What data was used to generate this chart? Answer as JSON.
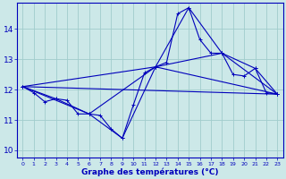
{
  "title": "Graphe des températures (°C)",
  "bg_color": "#cce8e8",
  "grid_color": "#a0cccc",
  "line_color": "#0000bb",
  "xlim": [
    -0.5,
    23.5
  ],
  "ylim": [
    9.75,
    14.85
  ],
  "xticks": [
    0,
    1,
    2,
    3,
    4,
    5,
    6,
    7,
    8,
    9,
    10,
    11,
    12,
    13,
    14,
    15,
    16,
    17,
    18,
    19,
    20,
    21,
    22,
    23
  ],
  "yticks": [
    10,
    11,
    12,
    13,
    14
  ],
  "series_main": {
    "x": [
      0,
      1,
      2,
      3,
      4,
      5,
      6,
      7,
      8,
      9,
      10,
      11,
      12,
      13,
      14,
      15,
      16,
      17,
      18,
      19,
      20,
      21,
      22,
      23
    ],
    "y": [
      12.1,
      11.9,
      11.6,
      11.7,
      11.65,
      11.2,
      11.2,
      11.15,
      10.7,
      10.4,
      11.5,
      12.55,
      12.75,
      12.9,
      14.5,
      14.7,
      13.65,
      13.2,
      13.2,
      12.5,
      12.45,
      12.7,
      11.9,
      11.85
    ]
  },
  "series_6h": {
    "x": [
      0,
      6,
      12,
      18,
      23
    ],
    "y": [
      12.1,
      11.2,
      12.75,
      13.2,
      11.85
    ]
  },
  "series_3h": {
    "x": [
      0,
      3,
      6,
      9,
      12,
      15,
      18,
      21,
      23
    ],
    "y": [
      12.1,
      11.7,
      11.2,
      10.4,
      12.75,
      14.7,
      13.2,
      12.7,
      11.85
    ]
  },
  "series_linear": {
    "x": [
      0,
      23
    ],
    "y": [
      12.1,
      11.85
    ]
  },
  "series_day": {
    "x": [
      0,
      12,
      23
    ],
    "y": [
      12.1,
      12.75,
      11.85
    ]
  }
}
